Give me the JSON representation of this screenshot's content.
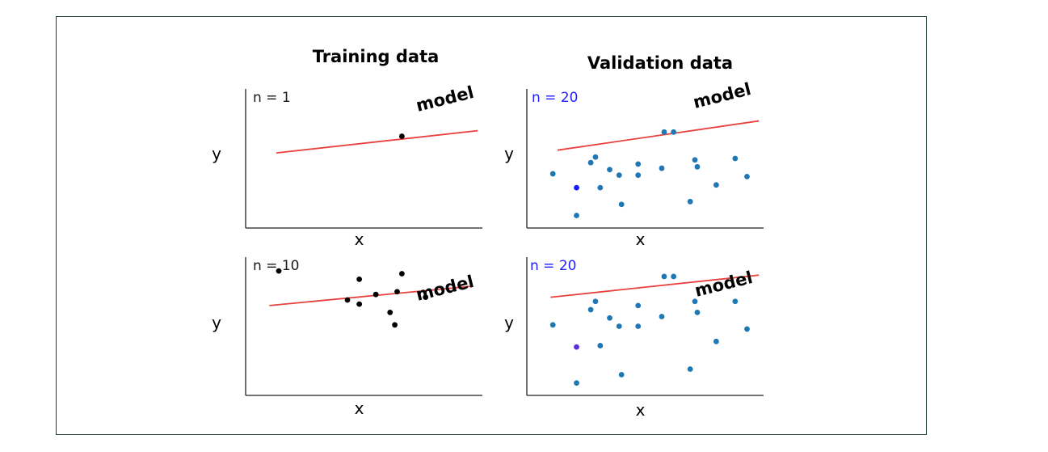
{
  "chart_data": [
    {
      "type": "scatter",
      "column": "Training data",
      "n_label": "n = 1",
      "model_label": "model",
      "xlabel": "x",
      "ylabel": "y",
      "xlim": [
        0,
        10
      ],
      "ylim": [
        0,
        10
      ],
      "point_color": "#000000",
      "line_color": "#e8413c",
      "label_color": "#1a1a1a",
      "model_line": {
        "x": [
          1.3,
          9.8
        ],
        "y": [
          5.4,
          7.0
        ]
      },
      "points": {
        "x": [
          6.6
        ],
        "y": [
          6.6
        ]
      }
    },
    {
      "type": "scatter",
      "column": "Validation data",
      "n_label": "n = 20",
      "model_label": "model",
      "xlabel": "x",
      "ylabel": "y",
      "xlim": [
        0,
        10
      ],
      "ylim": [
        0,
        10
      ],
      "point_color": "#1f77b4",
      "line_color": "#e8413c",
      "label_color": "#1f1fff",
      "highlight_index": 2,
      "highlight_color": "#1a1aff",
      "model_line": {
        "x": [
          1.3,
          9.8
        ],
        "y": [
          5.6,
          7.7
        ]
      },
      "points": {
        "x": [
          1.1,
          2.1,
          2.1,
          2.7,
          2.9,
          3.1,
          3.5,
          3.9,
          4.0,
          4.7,
          4.7,
          5.7,
          5.8,
          6.2,
          6.9,
          7.1,
          7.2,
          8.0,
          8.8,
          9.3
        ],
        "y": [
          3.9,
          0.9,
          2.9,
          4.7,
          5.1,
          2.9,
          4.2,
          3.8,
          1.7,
          4.6,
          3.8,
          4.3,
          6.9,
          6.9,
          1.9,
          4.9,
          4.4,
          3.1,
          5.0,
          3.7
        ]
      }
    },
    {
      "type": "scatter",
      "column": "Training data",
      "n_label": "n = 10",
      "model_label": "model",
      "xlabel": "x",
      "ylabel": "y",
      "xlim": [
        0,
        10
      ],
      "ylim": [
        0,
        10
      ],
      "point_color": "#000000",
      "line_color": "#e8413c",
      "label_color": "#1a1a1a",
      "model_line": {
        "x": [
          1.0,
          9.6
        ],
        "y": [
          6.5,
          7.9
        ]
      },
      "points": {
        "x": [
          1.4,
          4.3,
          4.8,
          4.8,
          5.5,
          6.1,
          6.3,
          6.4,
          6.6,
          7.6
        ],
        "y": [
          9.0,
          6.9,
          6.6,
          8.4,
          7.3,
          6.0,
          5.1,
          7.5,
          8.8,
          7.1
        ]
      }
    },
    {
      "type": "scatter",
      "column": "Validation data",
      "n_label": "n = 20",
      "model_label": "model",
      "xlabel": "x",
      "ylabel": "y",
      "xlim": [
        0,
        10
      ],
      "ylim": [
        0,
        10
      ],
      "point_color": "#1f77b4",
      "line_color": "#e8413c",
      "label_color": "#1f1fff",
      "highlight_index": 2,
      "highlight_color": "#5a2fd9",
      "model_line": {
        "x": [
          1.0,
          9.8
        ],
        "y": [
          7.1,
          8.7
        ]
      },
      "points": {
        "x": [
          1.1,
          2.1,
          2.1,
          2.7,
          2.9,
          3.1,
          3.5,
          3.9,
          4.0,
          4.7,
          4.7,
          5.7,
          5.8,
          6.2,
          6.9,
          7.1,
          7.2,
          8.0,
          8.8,
          9.3
        ],
        "y": [
          5.1,
          0.9,
          3.5,
          6.2,
          6.8,
          3.6,
          5.6,
          5.0,
          1.5,
          6.5,
          5.0,
          5.7,
          8.6,
          8.6,
          1.9,
          6.8,
          6.0,
          3.9,
          6.8,
          4.8
        ]
      }
    }
  ]
}
